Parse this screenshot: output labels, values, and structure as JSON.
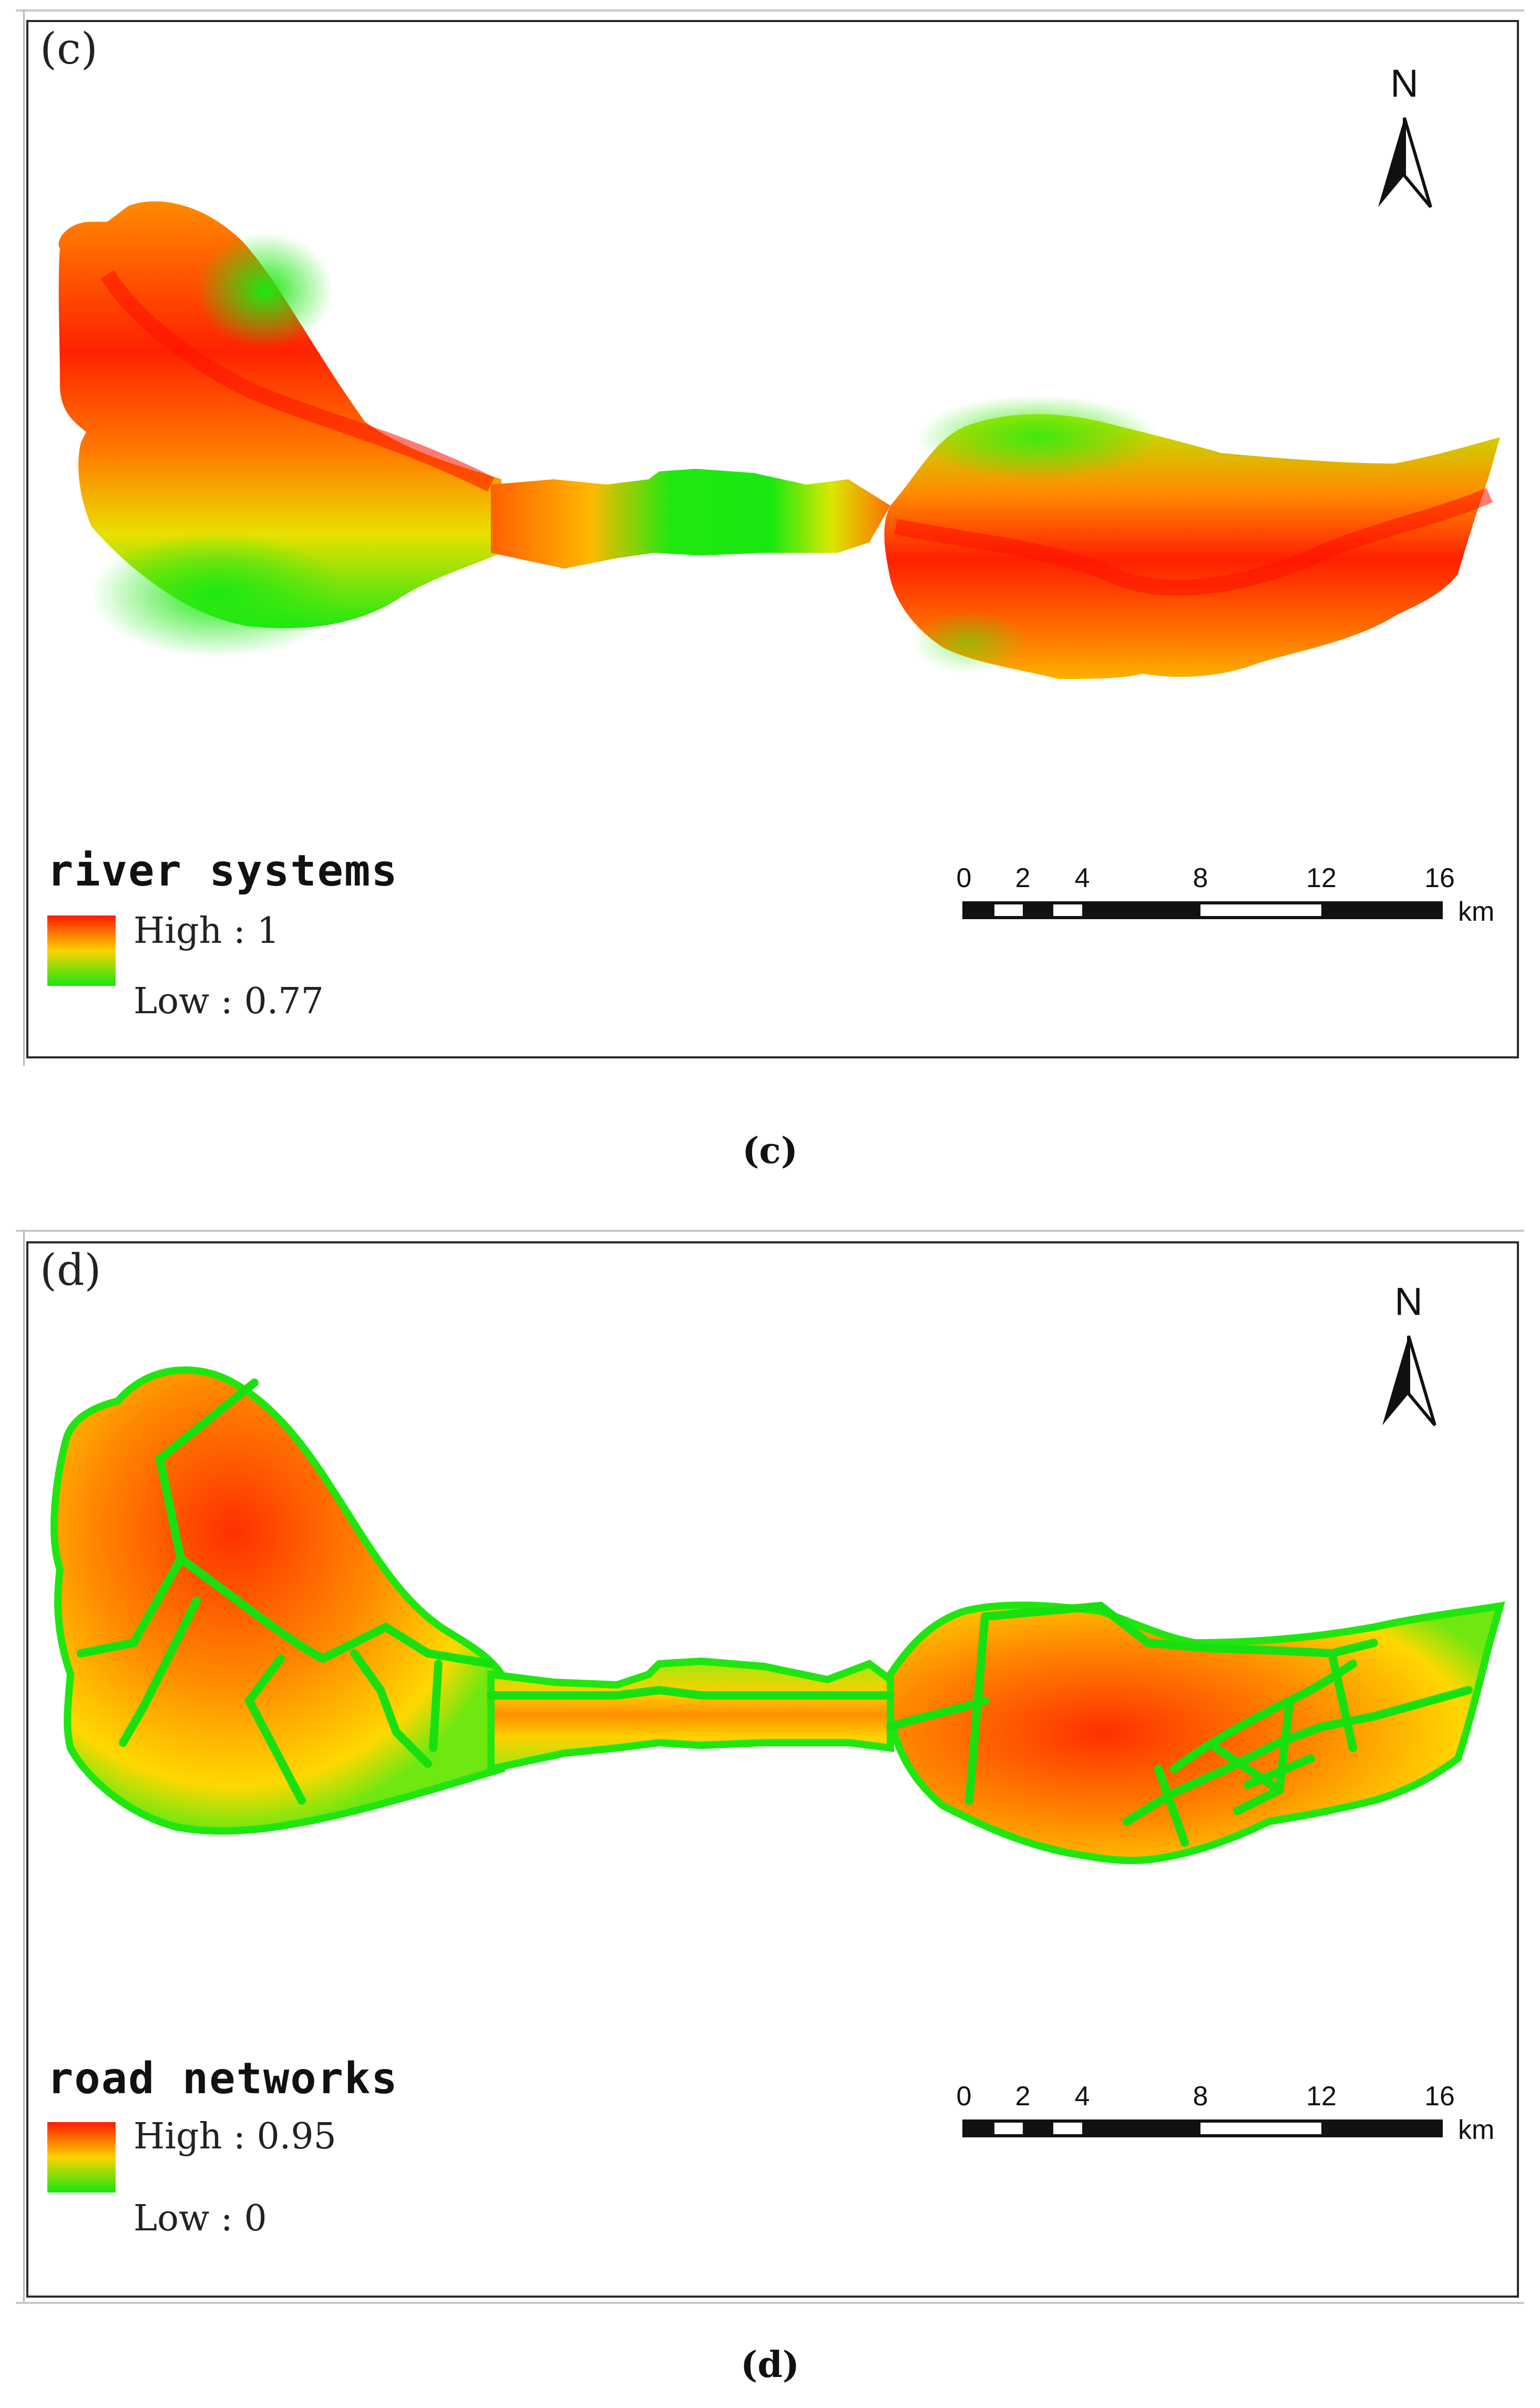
{
  "panels": [
    {
      "letter": "(c)",
      "legend_title": "river systems",
      "legend_high": "High : 1",
      "legend_low": "Low : 0.77",
      "caption": "(c)",
      "north_label": "N",
      "scale_ticks": [
        "0",
        "2",
        "4",
        "8",
        "12",
        "16"
      ],
      "scale_unit": "km",
      "colors": {
        "high": "#ff1a00",
        "mid": "#ffd200",
        "low": "#17e610"
      }
    },
    {
      "letter": "(d)",
      "legend_title": "road networks",
      "legend_high": "High : 0.95",
      "legend_low": "Low : 0",
      "caption": "(d)",
      "north_label": "N",
      "scale_ticks": [
        "0",
        "2",
        "4",
        "8",
        "12",
        "16"
      ],
      "scale_unit": "km",
      "colors": {
        "high": "#ff1a00",
        "mid": "#ffd200",
        "low": "#17e610"
      }
    }
  ]
}
